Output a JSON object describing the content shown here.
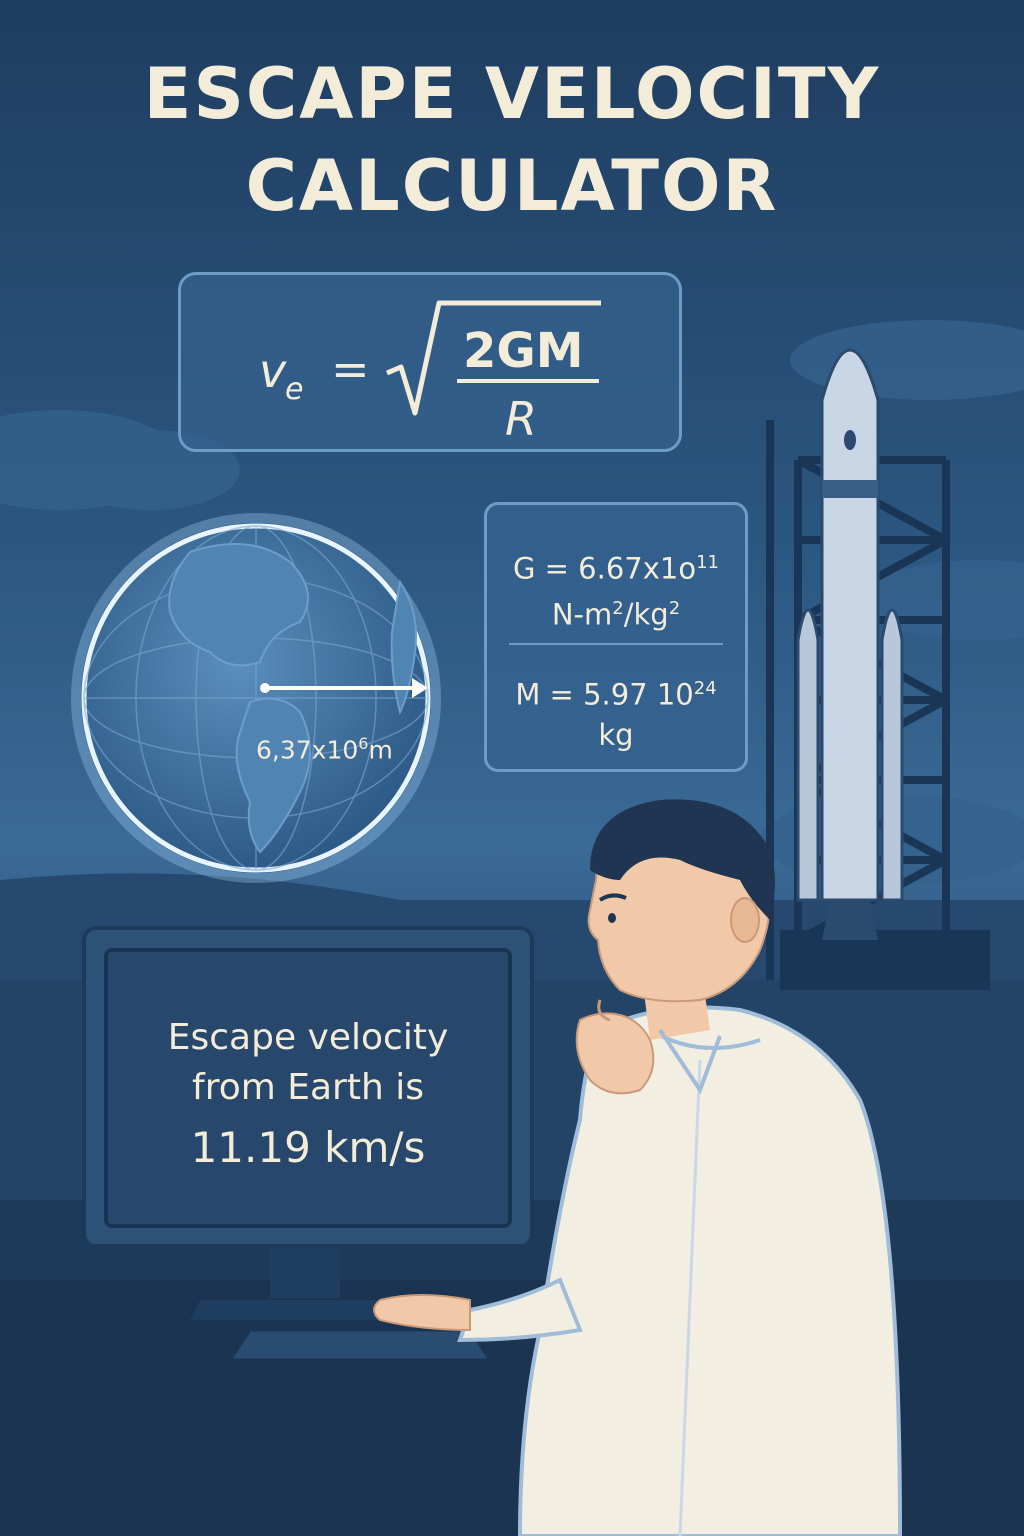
{
  "title": {
    "line1": "ESCAPE VELOCITY",
    "line2": "CALCULATOR"
  },
  "formula": {
    "lhs": "v",
    "lhs_subscript": "e",
    "equals": "=",
    "numerator": "2GM",
    "denominator": "R"
  },
  "constants": {
    "g_line1": "G = 6.67x1o",
    "g_exponent": "11",
    "g_line2_a": "N-m",
    "g_line2_sup1": "2",
    "g_line2_b": "/kg",
    "g_line2_sup2": "2",
    "m_line1": "M = 5.97 10",
    "m_exponent": "24",
    "m_line2": "kg"
  },
  "earth": {
    "radius_label": "6,37x10",
    "radius_exponent": "6",
    "radius_unit": "m"
  },
  "monitor": {
    "line1": "Escape velocity",
    "line2": "from Earth is",
    "line3": "11.19 km/s"
  },
  "colors": {
    "background": "#2b5680",
    "text": "#f3ecd8",
    "panel_border": "#6d9cc4",
    "earth_glow": "#cfe6ff"
  }
}
